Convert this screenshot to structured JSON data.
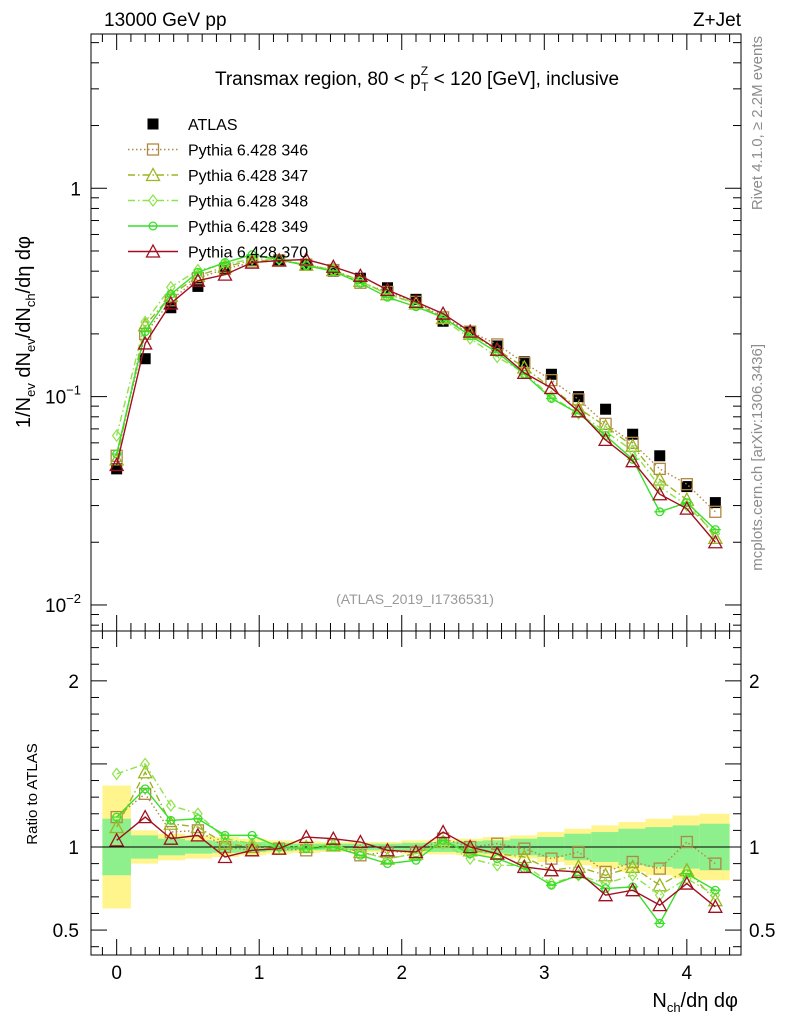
{
  "header": {
    "left": "13000 GeV pp",
    "right": "Z+Jet",
    "title": "Transmax region, 80 < p",
    "title_sup": "Z",
    "title_sub": "T",
    "title_end": " < 120 [GeV], inclusive",
    "watermark": "(ATLAS_2019_I1736531)",
    "side_top": "Rivet 4.1.0, ≥ 2.2M events",
    "side_bottom": "mcplots.cern.ch [arXiv:1306.3436]"
  },
  "chart_data": [
    {
      "type": "scatter",
      "panel": "main",
      "yscale": "log",
      "ylabel": "1/N_ev dN_ev/dN_ch/dη dφ",
      "ylim": [
        0.0075,
        5.5
      ],
      "xlim": [
        -0.18,
        4.38
      ],
      "yticks": [
        {
          "value": 1,
          "label": "1"
        },
        {
          "value": 0.1,
          "label": "10",
          "sup": "−1"
        },
        {
          "value": 0.01,
          "label": "10",
          "sup": "−2"
        }
      ],
      "x": [
        0.0,
        0.2,
        0.38,
        0.57,
        0.76,
        0.95,
        1.14,
        1.33,
        1.52,
        1.71,
        1.9,
        2.1,
        2.29,
        2.48,
        2.67,
        2.86,
        3.05,
        3.24,
        3.43,
        3.62,
        3.81,
        4.0,
        4.2
      ],
      "series": [
        {
          "name": "ATLAS",
          "marker": "filled-square",
          "color": "#000000",
          "values": [
            0.045,
            0.152,
            0.267,
            0.338,
            0.41,
            0.45,
            0.453,
            0.428,
            0.4,
            0.37,
            0.333,
            0.293,
            0.23,
            0.205,
            0.175,
            0.147,
            0.128,
            0.1,
            0.087,
            0.066,
            0.052,
            0.037,
            0.031
          ]
        },
        {
          "name": "Pythia 6.428 346",
          "marker": "open-square",
          "color": "#b08845",
          "dash": "1.5,2.5",
          "values": [
            0.052,
            0.2,
            0.29,
            0.37,
            0.41,
            0.44,
            0.45,
            0.43,
            0.405,
            0.352,
            0.318,
            0.285,
            0.24,
            0.205,
            0.178,
            0.145,
            0.12,
            0.097,
            0.074,
            0.06,
            0.045,
            0.038,
            0.028
          ]
        },
        {
          "name": "Pythia 6.428 347",
          "marker": "open-triangle",
          "color": "#9ab520",
          "dash": "7,3,1.5,3",
          "values": [
            0.05,
            0.22,
            0.305,
            0.38,
            0.42,
            0.45,
            0.45,
            0.43,
            0.405,
            0.36,
            0.31,
            0.28,
            0.238,
            0.2,
            0.168,
            0.138,
            0.11,
            0.088,
            0.072,
            0.058,
            0.04,
            0.032,
            0.021
          ]
        },
        {
          "name": "Pythia 6.428 348",
          "marker": "open-diamond",
          "color": "#8ee34a",
          "dash": "7,3,1.5,3",
          "values": [
            0.065,
            0.228,
            0.335,
            0.405,
            0.43,
            0.458,
            0.455,
            0.43,
            0.405,
            0.358,
            0.31,
            0.282,
            0.235,
            0.19,
            0.155,
            0.13,
            0.1,
            0.083,
            0.068,
            0.055,
            0.037,
            0.03,
            0.022
          ]
        },
        {
          "name": "Pythia 6.428 349",
          "marker": "open-circle",
          "color": "#3adf2a",
          "dash": "",
          "values": [
            0.053,
            0.205,
            0.31,
            0.395,
            0.44,
            0.48,
            0.455,
            0.425,
            0.4,
            0.35,
            0.3,
            0.27,
            0.24,
            0.196,
            0.163,
            0.128,
            0.098,
            0.083,
            0.065,
            0.05,
            0.028,
            0.031,
            0.023
          ]
        },
        {
          "name": "Pythia 6.428 370",
          "marker": "open-triangle",
          "color": "#a01020",
          "dash": "",
          "values": [
            0.047,
            0.18,
            0.28,
            0.36,
            0.385,
            0.44,
            0.45,
            0.455,
            0.42,
            0.38,
            0.325,
            0.285,
            0.25,
            0.205,
            0.168,
            0.13,
            0.11,
            0.085,
            0.062,
            0.049,
            0.034,
            0.029,
            0.02
          ]
        }
      ]
    },
    {
      "type": "scatter",
      "panel": "ratio",
      "ylabel": "Ratio to ATLAS",
      "xlabel": "N_ch/dη dφ",
      "ylim": [
        0.35,
        2.3
      ],
      "xlim": [
        -0.18,
        4.38
      ],
      "yticks": [
        0.5,
        1,
        2
      ],
      "xticks": [
        0,
        1,
        2,
        3,
        4
      ],
      "bands": {
        "edges": [
          -0.1,
          0.1,
          0.29,
          0.48,
          0.67,
          0.86,
          1.05,
          1.24,
          1.43,
          1.62,
          1.81,
          2.0,
          2.19,
          2.38,
          2.57,
          2.76,
          2.95,
          3.14,
          3.33,
          3.52,
          3.71,
          3.9,
          4.09,
          4.3
        ],
        "yellow_lo": [
          0.63,
          0.9,
          0.92,
          0.93,
          0.94,
          0.95,
          0.96,
          0.965,
          0.97,
          0.97,
          0.97,
          0.96,
          0.955,
          0.95,
          0.94,
          0.93,
          0.91,
          0.89,
          0.87,
          0.85,
          0.83,
          0.81,
          0.8
        ],
        "yellow_hi": [
          1.37,
          1.1,
          1.08,
          1.07,
          1.06,
          1.05,
          1.04,
          1.035,
          1.03,
          1.03,
          1.03,
          1.04,
          1.045,
          1.05,
          1.06,
          1.07,
          1.09,
          1.11,
          1.13,
          1.15,
          1.17,
          1.19,
          1.2
        ],
        "green_lo": [
          0.83,
          0.93,
          0.95,
          0.96,
          0.965,
          0.97,
          0.975,
          0.98,
          0.98,
          0.98,
          0.98,
          0.975,
          0.97,
          0.965,
          0.96,
          0.95,
          0.94,
          0.92,
          0.91,
          0.89,
          0.88,
          0.87,
          0.86
        ],
        "green_hi": [
          1.17,
          1.07,
          1.05,
          1.04,
          1.035,
          1.03,
          1.025,
          1.02,
          1.02,
          1.02,
          1.02,
          1.025,
          1.03,
          1.035,
          1.04,
          1.05,
          1.06,
          1.08,
          1.09,
          1.11,
          1.12,
          1.13,
          1.14
        ]
      },
      "x": [
        0.0,
        0.2,
        0.38,
        0.57,
        0.76,
        0.95,
        1.14,
        1.33,
        1.52,
        1.71,
        1.9,
        2.1,
        2.29,
        2.48,
        2.67,
        2.86,
        3.05,
        3.24,
        3.43,
        3.62,
        3.81,
        4.0,
        4.2
      ],
      "series": [
        {
          "name": "Pythia 6.428 346",
          "values": [
            1.18,
            1.32,
            1.09,
            1.1,
            1.0,
            0.98,
            0.99,
            0.98,
            1.01,
            0.95,
            0.97,
            0.97,
            1.05,
            1.0,
            1.02,
            0.99,
            0.93,
            0.97,
            0.85,
            0.91,
            0.87,
            1.03,
            0.9
          ]
        },
        {
          "name": "Pythia 6.428 347",
          "values": [
            1.12,
            1.45,
            1.14,
            1.12,
            1.02,
            1.0,
            0.99,
            1.0,
            1.01,
            0.97,
            0.93,
            0.96,
            1.03,
            0.98,
            0.96,
            0.94,
            0.86,
            0.88,
            0.83,
            0.88,
            0.77,
            0.86,
            0.68
          ]
        },
        {
          "name": "Pythia 6.428 348",
          "values": [
            1.44,
            1.5,
            1.25,
            1.2,
            1.05,
            1.02,
            1.0,
            1.0,
            1.01,
            0.97,
            0.93,
            0.96,
            1.02,
            0.93,
            0.89,
            0.89,
            0.78,
            0.83,
            0.78,
            0.83,
            0.71,
            0.81,
            0.71
          ]
        },
        {
          "name": "Pythia 6.428 349",
          "values": [
            1.18,
            1.35,
            1.16,
            1.17,
            1.07,
            1.07,
            1.0,
            0.99,
            1.0,
            0.95,
            0.9,
            0.92,
            1.04,
            0.96,
            0.93,
            0.87,
            0.77,
            0.83,
            0.75,
            0.76,
            0.54,
            0.84,
            0.74
          ]
        },
        {
          "name": "Pythia 6.428 370",
          "values": [
            1.04,
            1.18,
            1.05,
            1.07,
            0.94,
            0.98,
            0.99,
            1.06,
            1.05,
            1.03,
            0.98,
            0.97,
            1.09,
            1.0,
            0.96,
            0.88,
            0.86,
            0.85,
            0.71,
            0.74,
            0.65,
            0.78,
            0.64
          ]
        }
      ]
    }
  ]
}
